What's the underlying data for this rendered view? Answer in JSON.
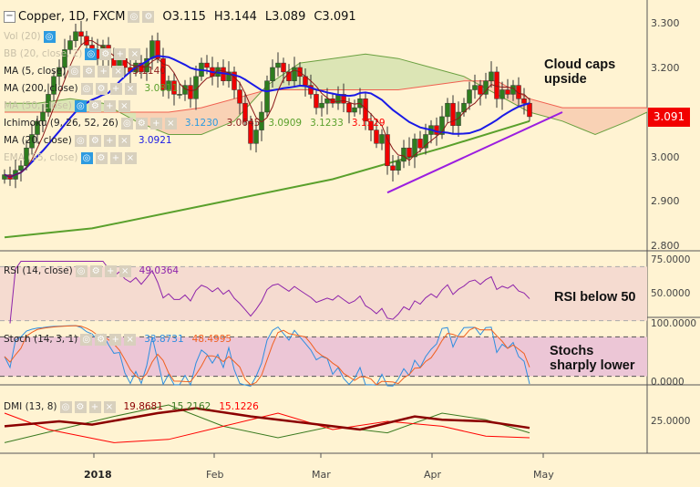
{
  "header": {
    "symbol": "Copper, 1D, FXCM",
    "open": "O3.115",
    "high": "H3.144",
    "low": "L3.089",
    "close": "C3.091"
  },
  "legend": [
    {
      "label": "Vol (20)",
      "value": "",
      "color": "#222",
      "faded": true
    },
    {
      "label": "BB (20, close, 2)",
      "value": "",
      "color": "#222",
      "faded": true
    },
    {
      "label": "MA (5, close)",
      "value": "3.1140",
      "color": "#8b1a1a",
      "faded": false
    },
    {
      "label": "MA (200, close)",
      "value": "3.0811",
      "color": "#5aa02c",
      "faded": false
    },
    {
      "label": "MA (50, close)",
      "value": "",
      "color": "#222",
      "faded": true
    },
    {
      "label": "Ichimoku (9, 26, 52, 26)",
      "values": [
        {
          "v": "3.1230",
          "c": "#2d9be0"
        },
        {
          "v": "3.0645",
          "c": "#8b1a1a"
        },
        {
          "v": "3.0909",
          "c": "#5aa02c"
        },
        {
          "v": "3.1233",
          "c": "#5aa02c"
        },
        {
          "v": "3.1529",
          "c": "#f00"
        }
      ],
      "faded": false
    },
    {
      "label": "MA (20, close)",
      "value": "3.0921",
      "color": "#1a1ae6",
      "faded": false
    },
    {
      "label": "EMA (55, close)",
      "value": "",
      "color": "#222",
      "faded": true
    }
  ],
  "rsi_legend": {
    "label": "RSI (14, close)",
    "value": "49.0364"
  },
  "stoch_legend": {
    "label": "Stoch (14, 3, 1)",
    "k": "33.8731",
    "d": "48.4995"
  },
  "dmi_legend": {
    "label": "DMI (13, 8)",
    "adx": "19.8681",
    "plus": "15.2162",
    "minus": "15.1226"
  },
  "annotations": {
    "cloud": "Cloud caps upside",
    "rsi": "RSI below 50",
    "stoch": "Stochs sharply lower"
  },
  "price_axis": [
    "3.300",
    "3.200",
    "3.000",
    "2.900",
    "2.800"
  ],
  "rsi_axis": [
    "75.0000",
    "50.0000"
  ],
  "stoch_axis": [
    "100.0000",
    "0.0000"
  ],
  "dmi_axis": [
    "25.0000"
  ],
  "x_axis": [
    "2018",
    "Feb",
    "Mar",
    "Apr",
    "May"
  ],
  "last_price": "3.091",
  "colors": {
    "up": "#2e7d1e",
    "down": "#f00000",
    "ma20": "#1a1ae6",
    "ma5": "#8b1a1a",
    "ma200": "#5aa02c",
    "trend": "#9b1de0"
  },
  "chart_data": {
    "type": "candlestick",
    "closes": [
      2.96,
      2.95,
      2.97,
      2.98,
      3.02,
      3.05,
      3.08,
      3.1,
      3.14,
      3.18,
      3.2,
      3.24,
      3.26,
      3.28,
      3.27,
      3.25,
      3.24,
      3.22,
      3.25,
      3.22,
      3.2,
      3.22,
      3.2,
      3.19,
      3.21,
      3.19,
      3.22,
      3.26,
      3.22,
      3.15,
      3.17,
      3.14,
      3.14,
      3.16,
      3.13,
      3.18,
      3.21,
      3.2,
      3.18,
      3.2,
      3.17,
      3.19,
      3.15,
      3.12,
      3.08,
      3.03,
      3.06,
      3.1,
      3.17,
      3.2,
      3.21,
      3.19,
      3.17,
      3.2,
      3.18,
      3.16,
      3.14,
      3.11,
      3.12,
      3.13,
      3.12,
      3.14,
      3.12,
      3.1,
      3.11,
      3.13,
      3.08,
      3.06,
      3.03,
      3.05,
      2.98,
      2.97,
      2.99,
      3.02,
      3.0,
      3.04,
      3.02,
      3.05,
      3.07,
      3.05,
      3.09,
      3.12,
      3.07,
      3.1,
      3.12,
      3.15,
      3.16,
      3.14,
      3.17,
      3.19,
      3.13,
      3.15,
      3.14,
      3.16,
      3.13,
      3.12,
      3.09
    ],
    "ma200": [
      [
        0,
        2.82
      ],
      [
        16,
        2.84
      ],
      [
        40,
        2.9
      ],
      [
        60,
        2.95
      ],
      [
        80,
        3.02
      ],
      [
        96,
        3.08
      ]
    ],
    "cloud_step": 6,
    "span_a": [
      3.12,
      3.12,
      3.13,
      3.12,
      3.08,
      3.05,
      3.05,
      3.08,
      3.16,
      3.21,
      3.22,
      3.23,
      3.22,
      3.2,
      3.18,
      3.14,
      3.1,
      3.08,
      3.05,
      3.08,
      3.1
    ],
    "span_b": [
      3.1,
      3.1,
      3.1,
      3.1,
      3.1,
      3.1,
      3.11,
      3.13,
      3.15,
      3.15,
      3.15,
      3.15,
      3.15,
      3.16,
      3.17,
      3.17,
      3.13,
      3.11,
      3.11,
      3.11,
      3.11
    ],
    "trendline": [
      [
        70,
        2.92
      ],
      [
        102,
        3.1
      ]
    ],
    "dmi_adx": [
      [
        0,
        22
      ],
      [
        10,
        25
      ],
      [
        16,
        23
      ],
      [
        28,
        30
      ],
      [
        35,
        33
      ],
      [
        45,
        28
      ],
      [
        55,
        24
      ],
      [
        65,
        20
      ],
      [
        75,
        28
      ],
      [
        80,
        26
      ],
      [
        88,
        25
      ],
      [
        96,
        21
      ]
    ],
    "dmi_plus": [
      [
        0,
        12
      ],
      [
        10,
        20
      ],
      [
        20,
        28
      ],
      [
        30,
        35
      ],
      [
        40,
        22
      ],
      [
        50,
        15
      ],
      [
        60,
        22
      ],
      [
        70,
        18
      ],
      [
        80,
        30
      ],
      [
        88,
        26
      ],
      [
        96,
        18
      ]
    ],
    "dmi_minus": [
      [
        0,
        30
      ],
      [
        8,
        20
      ],
      [
        20,
        12
      ],
      [
        30,
        14
      ],
      [
        40,
        22
      ],
      [
        50,
        30
      ],
      [
        60,
        20
      ],
      [
        70,
        25
      ],
      [
        80,
        22
      ],
      [
        88,
        16
      ],
      [
        96,
        15
      ]
    ],
    "ylim_price": [
      2.8,
      3.3
    ],
    "ylim_rsi": [
      25,
      75
    ],
    "ylim_stoch": [
      0,
      100
    ]
  }
}
